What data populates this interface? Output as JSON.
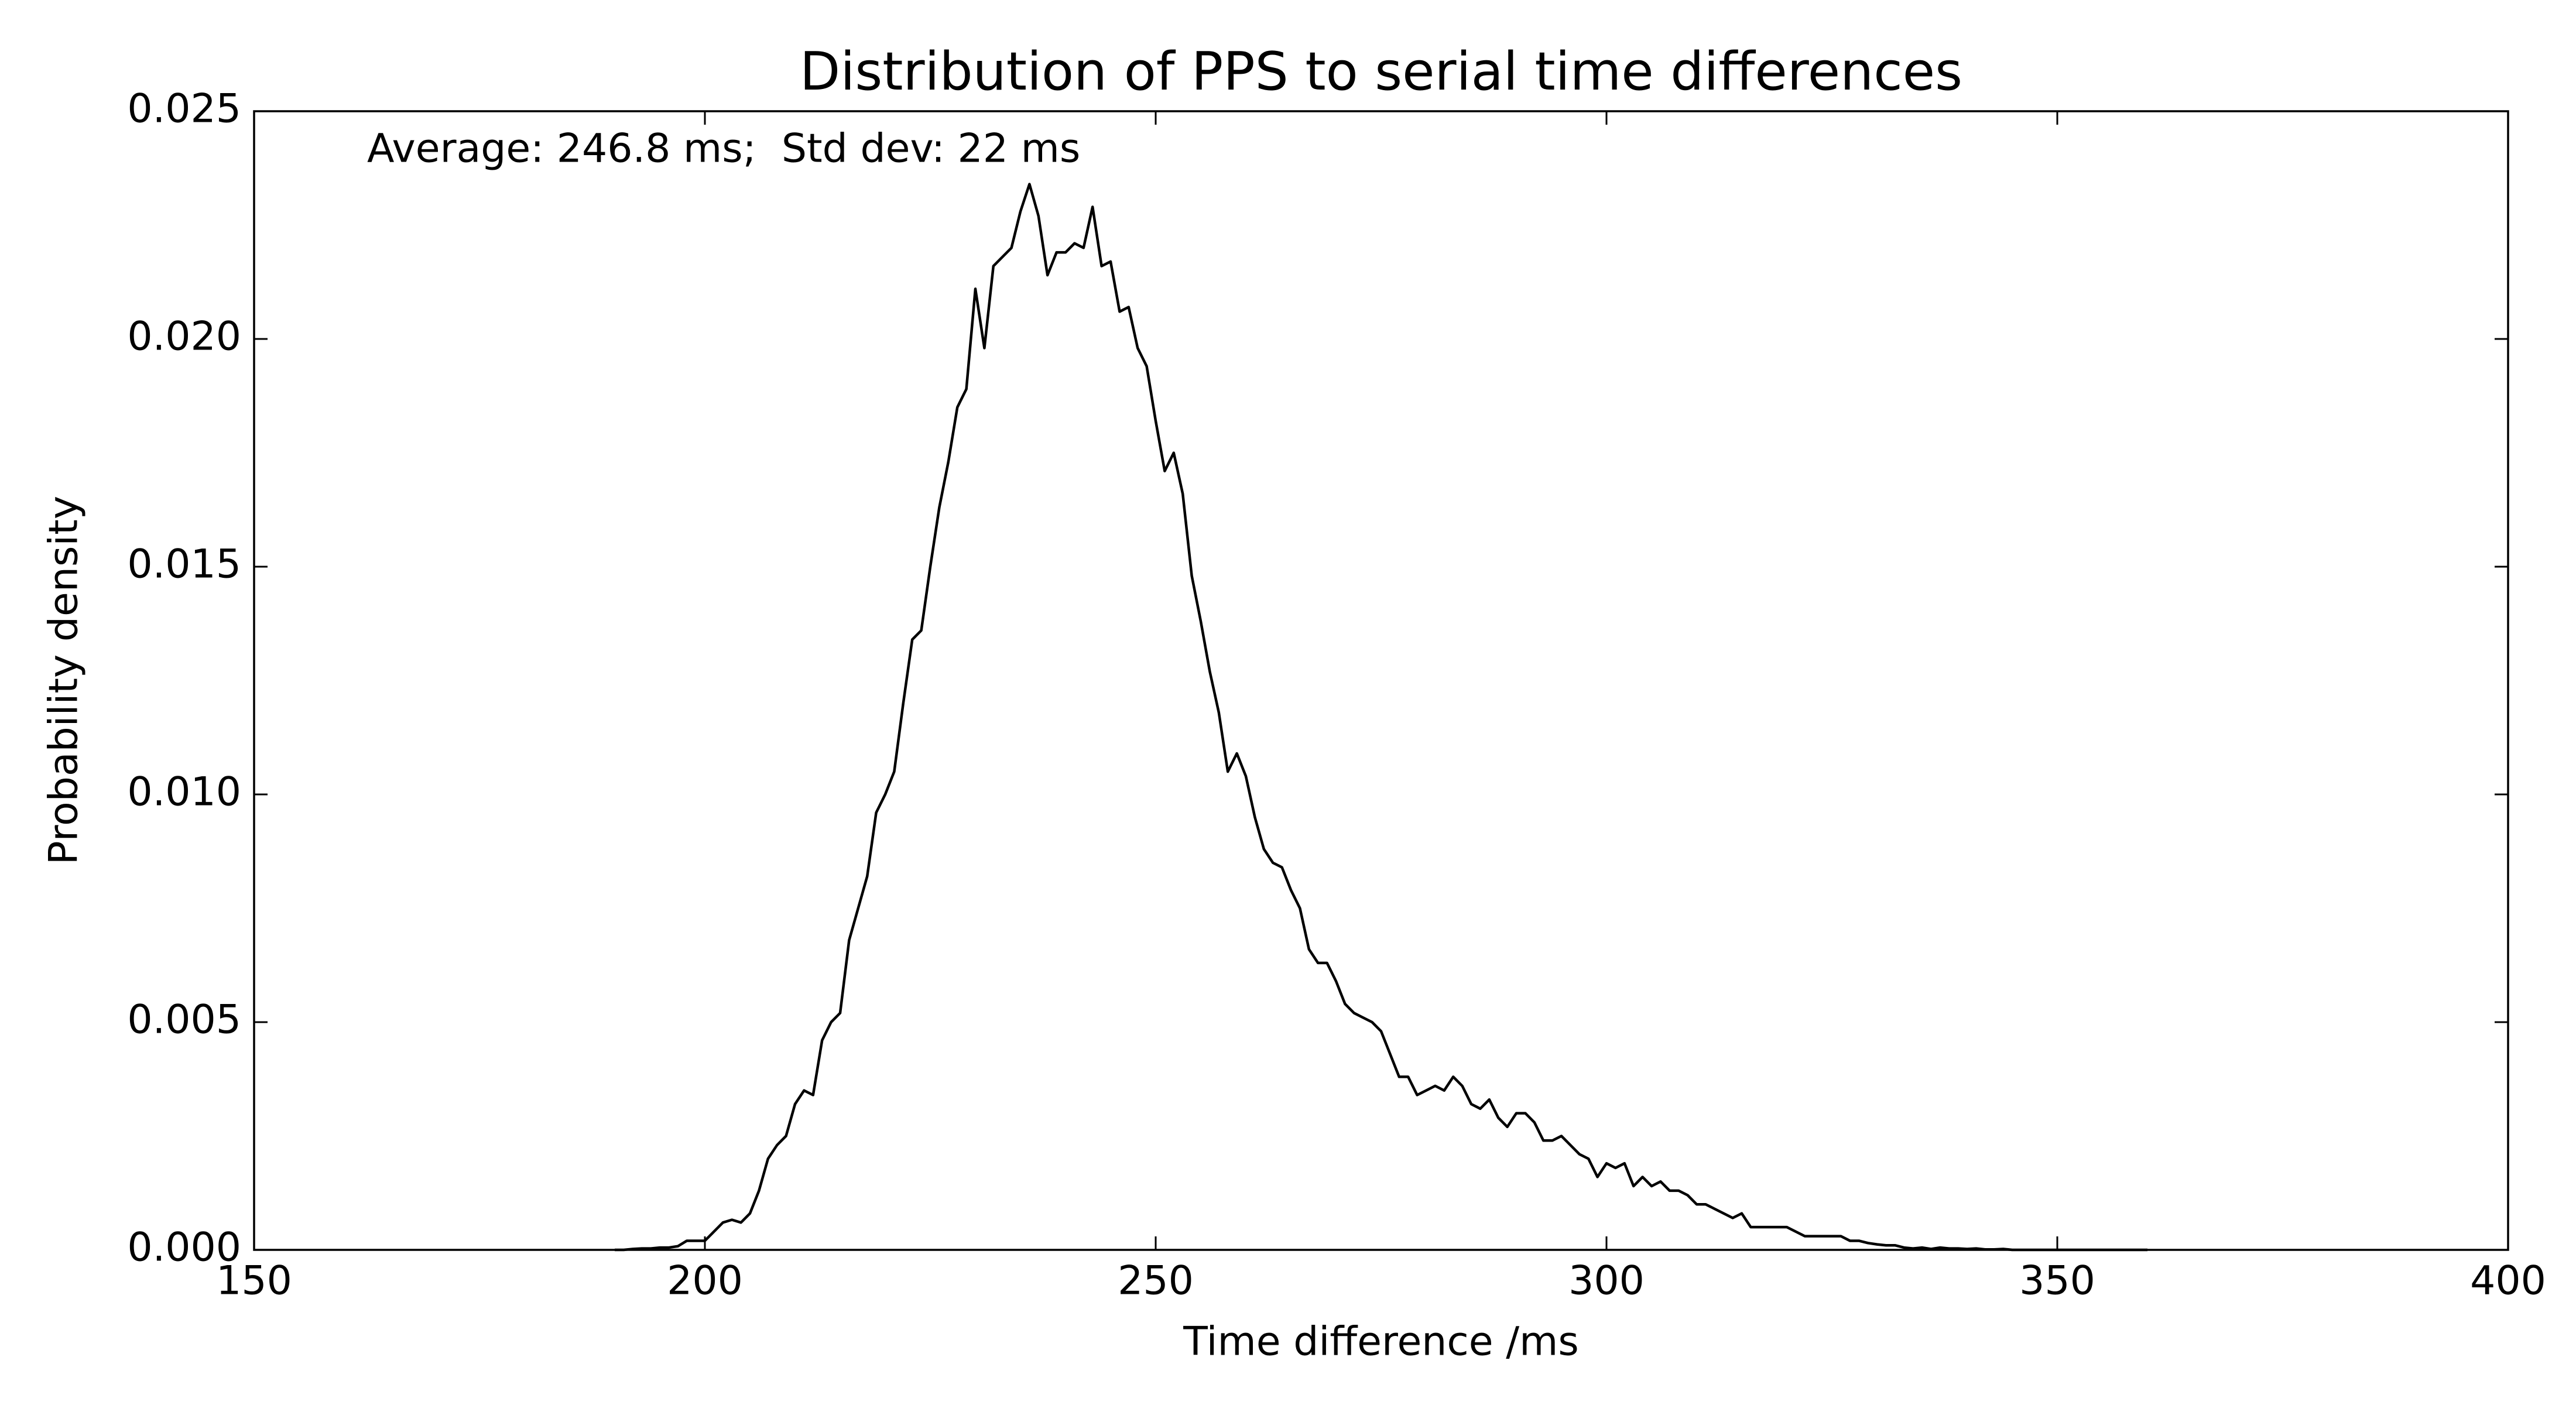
{
  "chart_data": {
    "type": "line",
    "title": "Distribution of PPS to serial time differences",
    "xlabel": "Time difference /ms",
    "ylabel": "Probability density",
    "annotation": "Average: 246.8 ms;  Std dev: 22 ms",
    "color": "#000000",
    "xlim": [
      150,
      400
    ],
    "ylim": [
      0,
      0.025
    ],
    "xticks": [
      150,
      200,
      250,
      300,
      350,
      400
    ],
    "yticks": [
      {
        "value": 0,
        "label": "0.000"
      },
      {
        "value": 0.005,
        "label": "0.005"
      },
      {
        "value": 0.01,
        "label": "0.010"
      },
      {
        "value": 0.015,
        "label": "0.015"
      },
      {
        "value": 0.02,
        "label": "0.020"
      },
      {
        "value": 0.025,
        "label": "0.025"
      }
    ],
    "grid": false,
    "x": [
      190,
      191,
      192,
      193,
      194,
      195,
      196,
      197,
      198,
      199,
      200,
      201,
      202,
      203,
      204,
      205,
      206,
      207,
      208,
      209,
      210,
      211,
      212,
      213,
      214,
      215,
      216,
      217,
      218,
      219,
      220,
      221,
      222,
      223,
      224,
      225,
      226,
      227,
      228,
      229,
      230,
      231,
      232,
      233,
      234,
      235,
      236,
      237,
      238,
      239,
      240,
      241,
      242,
      243,
      244,
      245,
      246,
      247,
      248,
      249,
      250,
      251,
      252,
      253,
      254,
      255,
      256,
      257,
      258,
      259,
      260,
      261,
      262,
      263,
      264,
      265,
      266,
      267,
      268,
      269,
      270,
      271,
      272,
      273,
      274,
      275,
      276,
      277,
      278,
      279,
      280,
      281,
      282,
      283,
      284,
      285,
      286,
      287,
      288,
      289,
      290,
      291,
      292,
      293,
      294,
      295,
      296,
      297,
      298,
      299,
      300,
      301,
      302,
      303,
      304,
      305,
      306,
      307,
      308,
      309,
      310,
      311,
      312,
      313,
      314,
      315,
      316,
      317,
      318,
      319,
      320,
      321,
      322,
      323,
      324,
      325,
      326,
      327,
      328,
      329,
      330,
      331,
      332,
      333,
      334,
      335,
      336,
      337,
      338,
      339,
      340,
      341,
      342,
      343,
      344,
      345,
      346,
      347,
      348,
      349,
      350,
      351,
      352,
      353,
      354,
      355,
      356,
      357,
      358,
      359,
      360
    ],
    "values": [
      0,
      0,
      2e-05,
      3e-05,
      3e-05,
      5e-05,
      5e-05,
      8e-05,
      0.0002,
      0.0002,
      0.0002,
      0.0004,
      0.0006,
      0.00066,
      0.0006,
      0.0008,
      0.0013,
      0.002,
      0.0023,
      0.0025,
      0.0032,
      0.0035,
      0.0034,
      0.0046,
      0.005,
      0.0052,
      0.0068,
      0.0075,
      0.0082,
      0.0096,
      0.01,
      0.0105,
      0.012,
      0.0134,
      0.0136,
      0.015,
      0.0163,
      0.0173,
      0.0185,
      0.0189,
      0.0211,
      0.0198,
      0.0216,
      0.0218,
      0.022,
      0.0228,
      0.0234,
      0.0227,
      0.0214,
      0.0219,
      0.0219,
      0.0221,
      0.022,
      0.0229,
      0.0216,
      0.0217,
      0.0206,
      0.0207,
      0.0198,
      0.0194,
      0.0182,
      0.0171,
      0.0175,
      0.0166,
      0.0148,
      0.0138,
      0.0127,
      0.0118,
      0.0105,
      0.0109,
      0.0104,
      0.0095,
      0.0088,
      0.0085,
      0.0084,
      0.0079,
      0.0075,
      0.0066,
      0.0063,
      0.0063,
      0.0059,
      0.0054,
      0.0052,
      0.0051,
      0.005,
      0.0048,
      0.0043,
      0.0038,
      0.0038,
      0.0034,
      0.0035,
      0.0036,
      0.0035,
      0.0038,
      0.0036,
      0.0032,
      0.0031,
      0.0033,
      0.0029,
      0.0027,
      0.003,
      0.003,
      0.0028,
      0.0024,
      0.0024,
      0.0025,
      0.0023,
      0.0021,
      0.002,
      0.0016,
      0.0019,
      0.0018,
      0.0019,
      0.0014,
      0.0016,
      0.0014,
      0.0015,
      0.0013,
      0.0013,
      0.0012,
      0.001,
      0.001,
      0.0009,
      0.0008,
      0.0007,
      0.0008,
      0.0005,
      0.0005,
      0.0005,
      0.0005,
      0.0005,
      0.0004,
      0.0003,
      0.0003,
      0.0003,
      0.0003,
      0.0003,
      0.0002,
      0.0002,
      0.00015,
      0.00012,
      0.0001,
      0.0001,
      5e-05,
      3e-05,
      5e-05,
      2e-05,
      5e-05,
      3e-05,
      3e-05,
      2e-05,
      3e-05,
      1e-05,
      1e-05,
      2e-05,
      0,
      0,
      0,
      0,
      0,
      0,
      0,
      0,
      0,
      0,
      0,
      0,
      0,
      0,
      0,
      0
    ]
  }
}
